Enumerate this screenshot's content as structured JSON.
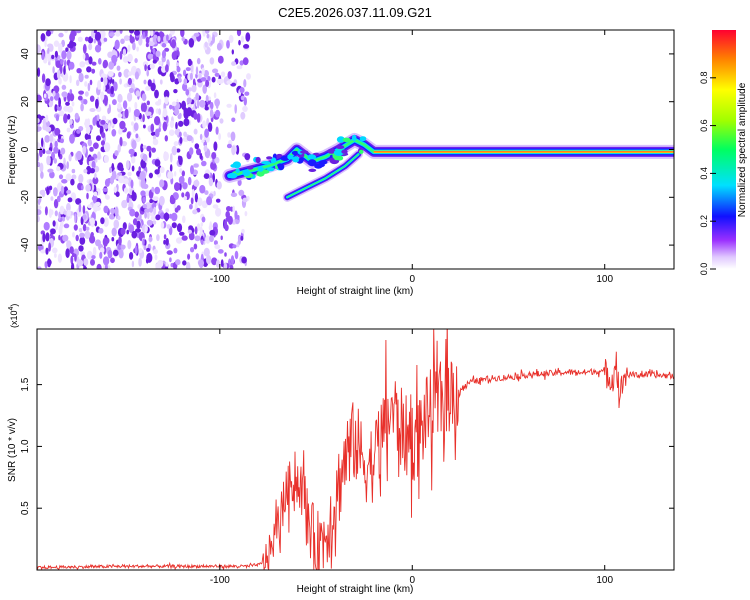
{
  "title": "C2E5.2026.037.11.09.G21",
  "chart_data": [
    {
      "type": "heatmap",
      "xlabel": "Height of straight line (km)",
      "ylabel": "Frequency (Hz)",
      "xlim": [
        -195,
        136
      ],
      "ylim": [
        -50,
        50
      ],
      "xticks": [
        -100,
        0,
        100
      ],
      "yticks": [
        -40,
        -20,
        0,
        20,
        40
      ],
      "grid": false,
      "noise_region_x": [
        -195,
        -85
      ],
      "signal_track": [
        {
          "x": -95,
          "y": -11
        },
        {
          "x": -85,
          "y": -9
        },
        {
          "x": -75,
          "y": -7
        },
        {
          "x": -65,
          "y": -4
        },
        {
          "x": -60,
          "y": 0
        },
        {
          "x": -52,
          "y": -5
        },
        {
          "x": -45,
          "y": -3
        },
        {
          "x": -38,
          "y": 0
        },
        {
          "x": -30,
          "y": 4
        },
        {
          "x": -25,
          "y": 2
        },
        {
          "x": -20,
          "y": -1
        },
        {
          "x": 0,
          "y": -1
        },
        {
          "x": 50,
          "y": -1
        },
        {
          "x": 100,
          "y": -1
        },
        {
          "x": 136,
          "y": -1
        }
      ],
      "secondary_track": [
        {
          "x": -65,
          "y": -20
        },
        {
          "x": -55,
          "y": -16
        },
        {
          "x": -45,
          "y": -12
        },
        {
          "x": -35,
          "y": -7
        },
        {
          "x": -28,
          "y": -2
        }
      ]
    },
    {
      "type": "colorbar",
      "label": "Normalized spectral amplitude",
      "range": [
        0,
        1
      ],
      "ticks": [
        "0.0",
        "0.2",
        "0.4",
        "0.6",
        "0.8"
      ],
      "tick_values": [
        0,
        0.2,
        0.4,
        0.6,
        0.8
      ]
    },
    {
      "type": "line",
      "xlabel": "Height of straight line (km)",
      "ylabel": "SNR (10 * v/v)",
      "scale_label": "(x10^4)",
      "scale_base": "(x10",
      "scale_exp": "4",
      "scale_close": ")",
      "xlim": [
        -195,
        136
      ],
      "ylim": [
        0,
        1.95
      ],
      "xticks": [
        -100,
        0,
        100
      ],
      "yticks": [
        0.5,
        1.0,
        1.5
      ],
      "ytick_labels": [
        "0.5",
        "1.0",
        "1.5"
      ],
      "color": "#e8302a",
      "grid": false,
      "series": [
        {
          "name": "SNR",
          "points": [
            [
              -195,
              0.02
            ],
            [
              -150,
              0.03
            ],
            [
              -100,
              0.03
            ],
            [
              -85,
              0.03
            ],
            [
              -78,
              0.05
            ],
            [
              -74,
              0.15
            ],
            [
              -70,
              0.35
            ],
            [
              -66,
              0.6
            ],
            [
              -62,
              0.75
            ],
            [
              -58,
              0.7
            ],
            [
              -54,
              0.4
            ],
            [
              -50,
              0.2
            ],
            [
              -46,
              0.25
            ],
            [
              -42,
              0.45
            ],
            [
              -38,
              0.7
            ],
            [
              -34,
              0.95
            ],
            [
              -30,
              1.05
            ],
            [
              -26,
              0.9
            ],
            [
              -22,
              0.85
            ],
            [
              -18,
              0.95
            ],
            [
              -14,
              1.2
            ],
            [
              -10,
              1.3
            ],
            [
              -6,
              1.15
            ],
            [
              -2,
              1.05
            ],
            [
              2,
              1.05
            ],
            [
              6,
              1.2
            ],
            [
              10,
              1.3
            ],
            [
              14,
              1.35
            ],
            [
              20,
              1.45
            ],
            [
              26,
              1.47
            ],
            [
              30,
              1.52
            ],
            [
              40,
              1.55
            ],
            [
              50,
              1.56
            ],
            [
              60,
              1.58
            ],
            [
              70,
              1.59
            ],
            [
              80,
              1.6
            ],
            [
              90,
              1.6
            ],
            [
              96,
              1.61
            ],
            [
              100,
              1.6
            ],
            [
              104,
              1.55
            ],
            [
              106,
              1.7
            ],
            [
              108,
              1.4
            ],
            [
              110,
              1.58
            ],
            [
              120,
              1.58
            ],
            [
              136,
              1.57
            ]
          ]
        }
      ]
    }
  ]
}
